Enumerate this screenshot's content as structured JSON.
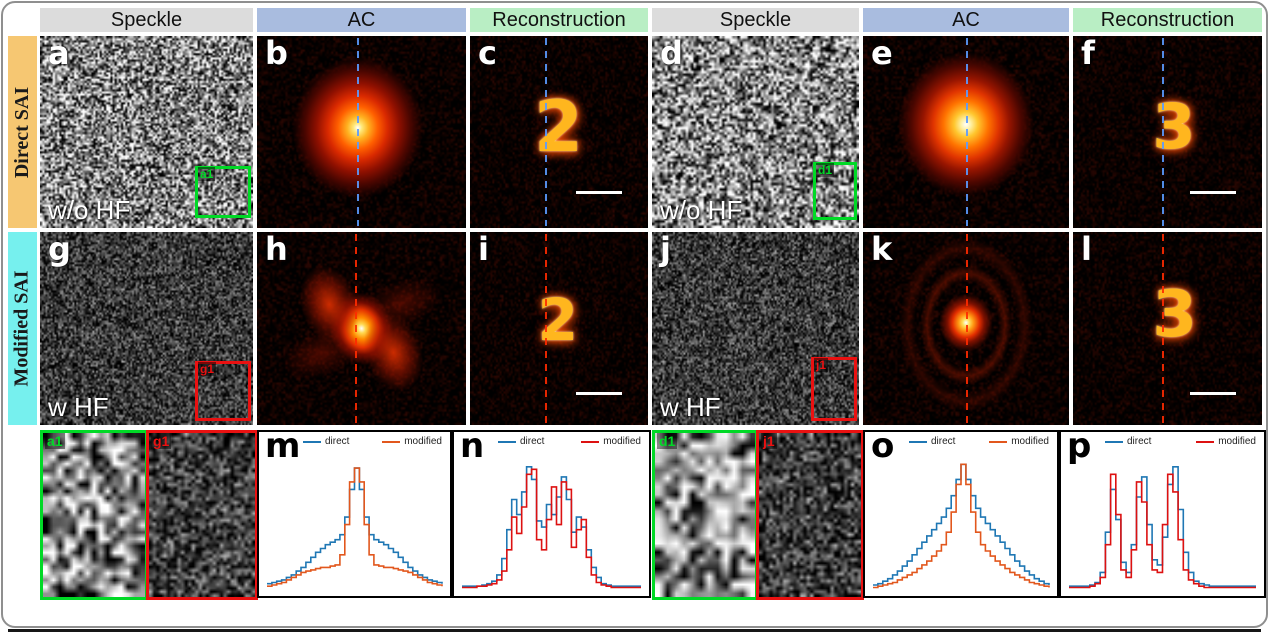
{
  "figure": {
    "column_headers": [
      {
        "label": "Speckle",
        "bg": "#dcdcdc"
      },
      {
        "label": "AC",
        "bg": "#a9bcdf"
      },
      {
        "label": "Reconstruction",
        "bg": "#b9eec4"
      },
      {
        "label": "Speckle",
        "bg": "#dcdcdc"
      },
      {
        "label": "AC",
        "bg": "#a9bcdf"
      },
      {
        "label": "Reconstruction",
        "bg": "#b9eec4"
      }
    ],
    "row_labels": [
      {
        "label": "Direct SAI",
        "bg": "#f6c772",
        "fg": "#1a1a1a"
      },
      {
        "label": "Modified SAI",
        "bg": "#76f0ee",
        "fg": "#1a1a1a"
      }
    ],
    "accents": {
      "blue_dash": "#5b9bff",
      "red_dash": "#ff2a00",
      "green_box": "#00d926",
      "red_box": "#ea1111",
      "hot_digit": "#ffb61e"
    },
    "panels": {
      "a": {
        "letter": "a",
        "caption": "w/o HF",
        "inset": "a1"
      },
      "b": {
        "letter": "b"
      },
      "c": {
        "letter": "c",
        "digit": "2"
      },
      "d": {
        "letter": "d",
        "caption": "w/o HF",
        "inset": "d1"
      },
      "e": {
        "letter": "e"
      },
      "f": {
        "letter": "f",
        "digit": "3"
      },
      "g": {
        "letter": "g",
        "caption": "w HF",
        "inset": "g1"
      },
      "h": {
        "letter": "h"
      },
      "i": {
        "letter": "i",
        "digit": "2"
      },
      "j": {
        "letter": "j",
        "caption": "w HF",
        "inset": "j1"
      },
      "k": {
        "letter": "k"
      },
      "l": {
        "letter": "l",
        "digit": "3"
      },
      "m": {
        "letter": "m"
      },
      "n": {
        "letter": "n"
      },
      "o": {
        "letter": "o"
      },
      "p": {
        "letter": "p"
      },
      "zoom_a1": {
        "label": "a1"
      },
      "zoom_g1": {
        "label": "g1"
      },
      "zoom_d1": {
        "label": "d1"
      },
      "zoom_j1": {
        "label": "j1"
      }
    }
  },
  "chart_data": [
    {
      "id": "m",
      "type": "line",
      "style": "step",
      "title": "",
      "xlabel": "",
      "ylabel": "",
      "ylim": [
        0,
        1.05
      ],
      "legend_position": "top",
      "grid": false,
      "series": [
        {
          "name": "direct",
          "color": "#1f77b4",
          "values": [
            0.05,
            0.06,
            0.07,
            0.08,
            0.1,
            0.12,
            0.15,
            0.18,
            0.22,
            0.26,
            0.3,
            0.33,
            0.36,
            0.38,
            0.4,
            0.44,
            0.58,
            0.8,
            0.97,
            0.8,
            0.58,
            0.44,
            0.4,
            0.38,
            0.36,
            0.33,
            0.3,
            0.26,
            0.22,
            0.18,
            0.15,
            0.12,
            0.1,
            0.08,
            0.07,
            0.06,
            0.05
          ]
        },
        {
          "name": "modified",
          "color": "#e2571d",
          "values": [
            0.03,
            0.04,
            0.05,
            0.06,
            0.08,
            0.1,
            0.12,
            0.14,
            0.15,
            0.16,
            0.17,
            0.18,
            0.18,
            0.19,
            0.2,
            0.28,
            0.52,
            0.86,
            0.97,
            0.86,
            0.52,
            0.28,
            0.2,
            0.19,
            0.18,
            0.18,
            0.17,
            0.16,
            0.15,
            0.14,
            0.12,
            0.1,
            0.08,
            0.06,
            0.05,
            0.04,
            0.03
          ]
        }
      ]
    },
    {
      "id": "n",
      "type": "line",
      "style": "step",
      "title": "",
      "xlabel": "",
      "ylabel": "",
      "ylim": [
        0,
        1.05
      ],
      "legend_position": "top",
      "grid": false,
      "series": [
        {
          "name": "direct",
          "color": "#1f77b4",
          "values": [
            0.03,
            0.03,
            0.03,
            0.03,
            0.04,
            0.05,
            0.07,
            0.12,
            0.25,
            0.48,
            0.72,
            0.6,
            0.78,
            0.98,
            0.88,
            0.55,
            0.5,
            0.68,
            0.6,
            0.74,
            0.9,
            0.72,
            0.46,
            0.58,
            0.5,
            0.32,
            0.18,
            0.1,
            0.05,
            0.04,
            0.03,
            0.03,
            0.03,
            0.03,
            0.03,
            0.03,
            0.03
          ]
        },
        {
          "name": "modified",
          "color": "#dd1111",
          "values": [
            0.02,
            0.02,
            0.02,
            0.03,
            0.03,
            0.04,
            0.05,
            0.08,
            0.15,
            0.32,
            0.58,
            0.45,
            0.66,
            0.92,
            0.96,
            0.4,
            0.32,
            0.56,
            0.82,
            0.52,
            0.86,
            0.8,
            0.34,
            0.48,
            0.56,
            0.26,
            0.12,
            0.06,
            0.04,
            0.03,
            0.02,
            0.02,
            0.02,
            0.02,
            0.02,
            0.02,
            0.02
          ]
        }
      ]
    },
    {
      "id": "o",
      "type": "line",
      "style": "step",
      "title": "",
      "xlabel": "",
      "ylabel": "",
      "ylim": [
        0,
        1.05
      ],
      "legend_position": "top",
      "grid": false,
      "series": [
        {
          "name": "direct",
          "color": "#1f77b4",
          "values": [
            0.04,
            0.05,
            0.07,
            0.09,
            0.12,
            0.15,
            0.19,
            0.23,
            0.28,
            0.33,
            0.38,
            0.43,
            0.48,
            0.53,
            0.58,
            0.65,
            0.75,
            0.88,
            1.0,
            0.88,
            0.75,
            0.65,
            0.58,
            0.53,
            0.48,
            0.43,
            0.38,
            0.33,
            0.28,
            0.23,
            0.19,
            0.15,
            0.12,
            0.09,
            0.07,
            0.05,
            0.04
          ]
        },
        {
          "name": "modified",
          "color": "#e2571d",
          "values": [
            0.02,
            0.03,
            0.04,
            0.05,
            0.06,
            0.08,
            0.1,
            0.12,
            0.14,
            0.17,
            0.2,
            0.23,
            0.27,
            0.31,
            0.36,
            0.46,
            0.62,
            0.84,
            1.0,
            0.84,
            0.62,
            0.46,
            0.36,
            0.31,
            0.27,
            0.23,
            0.2,
            0.17,
            0.14,
            0.12,
            0.1,
            0.08,
            0.06,
            0.05,
            0.04,
            0.03,
            0.02
          ]
        }
      ]
    },
    {
      "id": "p",
      "type": "line",
      "style": "step",
      "title": "",
      "xlabel": "",
      "ylabel": "",
      "ylim": [
        0,
        1.05
      ],
      "legend_position": "top",
      "grid": false,
      "series": [
        {
          "name": "direct",
          "color": "#1f77b4",
          "values": [
            0.03,
            0.03,
            0.03,
            0.03,
            0.04,
            0.06,
            0.14,
            0.46,
            0.8,
            0.56,
            0.22,
            0.14,
            0.36,
            0.74,
            0.9,
            0.52,
            0.24,
            0.2,
            0.42,
            0.84,
            0.98,
            0.64,
            0.3,
            0.14,
            0.07,
            0.05,
            0.04,
            0.03,
            0.03,
            0.03,
            0.03,
            0.03,
            0.03,
            0.03,
            0.03,
            0.03,
            0.03
          ]
        },
        {
          "name": "modified",
          "color": "#dd1111",
          "values": [
            0.02,
            0.02,
            0.02,
            0.02,
            0.03,
            0.05,
            0.1,
            0.36,
            0.92,
            0.6,
            0.16,
            0.1,
            0.32,
            0.86,
            0.7,
            0.36,
            0.16,
            0.14,
            0.52,
            0.92,
            0.78,
            0.4,
            0.16,
            0.08,
            0.05,
            0.03,
            0.02,
            0.02,
            0.02,
            0.02,
            0.02,
            0.02,
            0.02,
            0.02,
            0.02,
            0.02,
            0.02
          ]
        }
      ]
    }
  ]
}
